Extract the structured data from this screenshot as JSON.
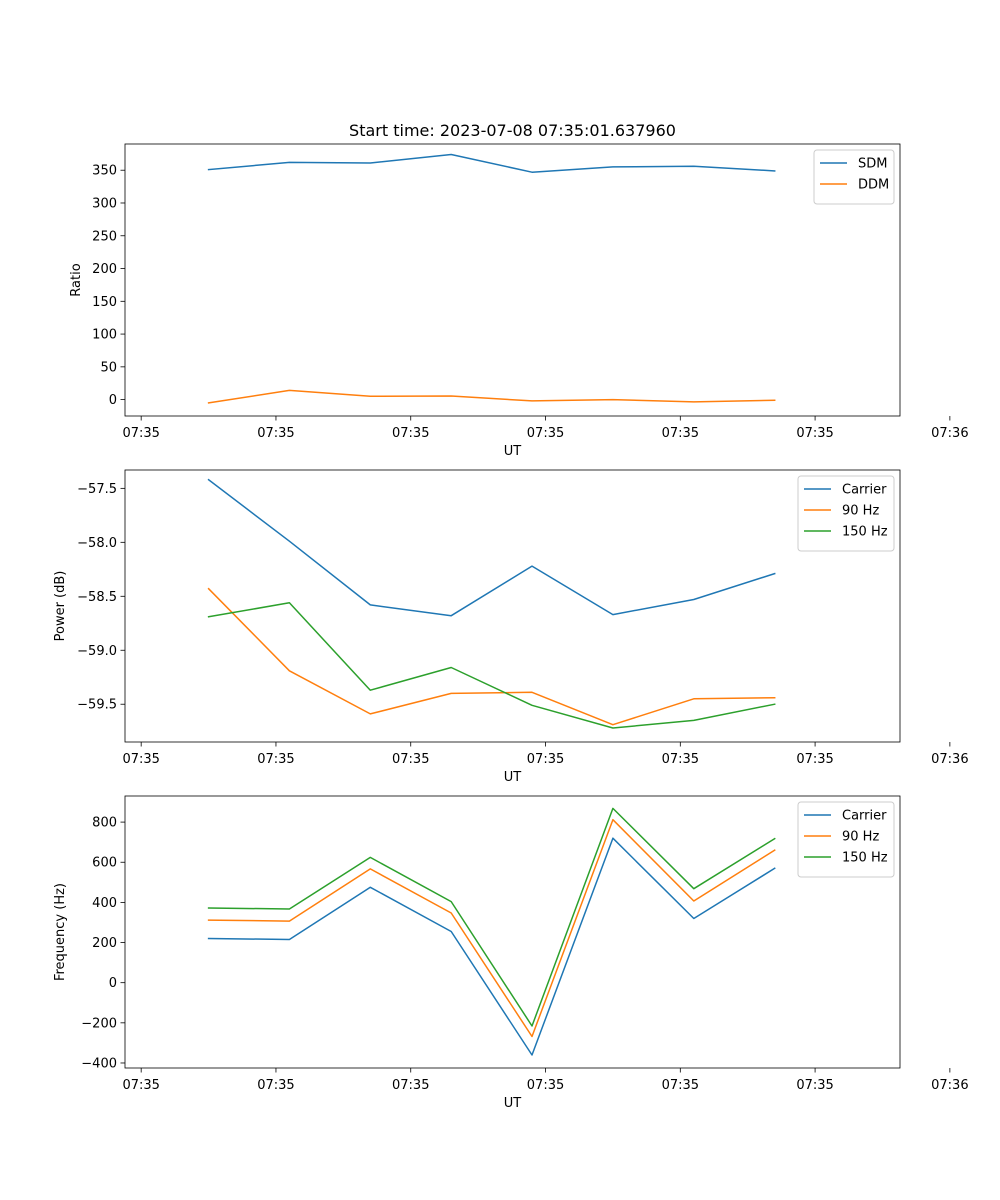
{
  "chart_data": [
    {
      "type": "line",
      "title": "Start time: 2023-07-08 07:35:01.637960",
      "xlabel": "UT",
      "ylabel": "Ratio",
      "x_tick_labels": [
        "07:35",
        "07:35",
        "07:35",
        "07:35",
        "07:35",
        "07:35",
        "07:36"
      ],
      "x": [
        0.5,
        1.1,
        1.7,
        2.3,
        2.9,
        3.5,
        4.1,
        4.7
      ],
      "xlim": [
        -0.12,
        5.63
      ],
      "ylim": [
        -25,
        390
      ],
      "yticks": [
        0,
        50,
        100,
        150,
        200,
        250,
        300,
        350
      ],
      "series": [
        {
          "name": "SDM",
          "color": "#1f77b4",
          "values": [
            351,
            362,
            361,
            374,
            347,
            355,
            356,
            349
          ]
        },
        {
          "name": "DDM",
          "color": "#ff7f0e",
          "values": [
            -5,
            14,
            5,
            5.5,
            -2,
            0,
            -3.5,
            -1
          ]
        }
      ],
      "legend": "top-right"
    },
    {
      "type": "line",
      "title": "",
      "xlabel": "UT",
      "ylabel": "Power (dB)",
      "x_tick_labels": [
        "07:35",
        "07:35",
        "07:35",
        "07:35",
        "07:35",
        "07:35",
        "07:36"
      ],
      "x": [
        0.5,
        1.1,
        1.7,
        2.3,
        2.9,
        3.5,
        4.1,
        4.7
      ],
      "xlim": [
        -0.12,
        5.63
      ],
      "ylim": [
        -59.85,
        -57.33
      ],
      "yticks": [
        -57.5,
        -58.0,
        -58.5,
        -59.0,
        -59.5
      ],
      "series": [
        {
          "name": "Carrier",
          "color": "#1f77b4",
          "values": [
            -57.42,
            -57.99,
            -58.58,
            -58.68,
            -58.22,
            -58.67,
            -58.53,
            -58.29
          ]
        },
        {
          "name": "90 Hz",
          "color": "#ff7f0e",
          "values": [
            -58.43,
            -59.19,
            -59.59,
            -59.4,
            -59.39,
            -59.69,
            -59.45,
            -59.44
          ]
        },
        {
          "name": "150 Hz",
          "color": "#2ca02c",
          "values": [
            -58.69,
            -58.56,
            -59.37,
            -59.16,
            -59.51,
            -59.72,
            -59.65,
            -59.5
          ]
        }
      ],
      "legend": "top-right"
    },
    {
      "type": "line",
      "title": "",
      "xlabel": "UT",
      "ylabel": "Frequency (Hz)",
      "x_tick_labels": [
        "07:35",
        "07:35",
        "07:35",
        "07:35",
        "07:35",
        "07:35",
        "07:36"
      ],
      "x": [
        0.5,
        1.1,
        1.7,
        2.3,
        2.9,
        3.5,
        4.1,
        4.7
      ],
      "xlim": [
        -0.12,
        5.63
      ],
      "ylim": [
        -425,
        930
      ],
      "yticks": [
        -400,
        -200,
        0,
        200,
        400,
        600,
        800
      ],
      "series": [
        {
          "name": "Carrier",
          "color": "#1f77b4",
          "values": [
            220,
            215,
            475,
            255,
            -360,
            720,
            320,
            570
          ]
        },
        {
          "name": "90 Hz",
          "color": "#ff7f0e",
          "values": [
            312,
            307,
            567,
            347,
            -268,
            812,
            407,
            660
          ]
        },
        {
          "name": "150 Hz",
          "color": "#2ca02c",
          "values": [
            372,
            367,
            624,
            404,
            -216,
            868,
            468,
            718
          ]
        }
      ],
      "legend": "top-right"
    }
  ]
}
